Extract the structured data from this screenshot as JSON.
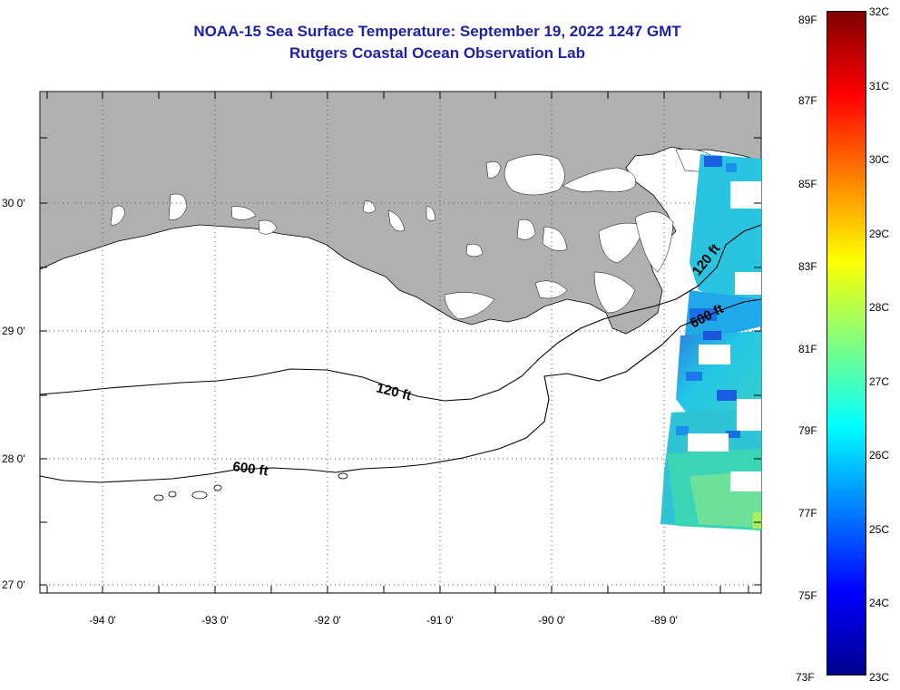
{
  "header": {
    "title": "NOAA-15 Sea Surface Temperature:  September 19, 2022 1247 GMT",
    "subtitle": "Rutgers Coastal Ocean Observation Lab"
  },
  "map": {
    "region": "Northern Gulf of Mexico / Louisiana coast",
    "lon_ticks": [
      "-94 0'",
      "-93 0'",
      "-92 0'",
      "-91 0'",
      "-90 0'",
      "-89 0'"
    ],
    "lat_ticks": [
      "30 0'",
      "29 0'",
      "28 0'",
      "27 0'"
    ],
    "lon_range": [
      -94.55,
      -88.2
    ],
    "lat_range": [
      26.95,
      30.85
    ],
    "grid": "dotted",
    "land_color": "#b0b0b0",
    "contours": [
      {
        "label": "120 ft"
      },
      {
        "label": "600 ft"
      },
      {
        "label": "120 ft"
      },
      {
        "label": "600 ft"
      }
    ]
  },
  "colorbar": {
    "fahrenheit_labels": [
      "89F",
      "87F",
      "85F",
      "83F",
      "81F",
      "79F",
      "77F",
      "75F",
      "73F"
    ],
    "celsius_labels": [
      "32C",
      "31C",
      "30C",
      "29C",
      "28C",
      "27C",
      "26C",
      "25C",
      "24C",
      "23C"
    ],
    "min_c": 23,
    "max_c": 32,
    "colormap": "jet",
    "colors": [
      "#00008f",
      "#0000ff",
      "#0080ff",
      "#00ffff",
      "#80ff80",
      "#ffff00",
      "#ff8000",
      "#ff0000",
      "#800000"
    ]
  }
}
